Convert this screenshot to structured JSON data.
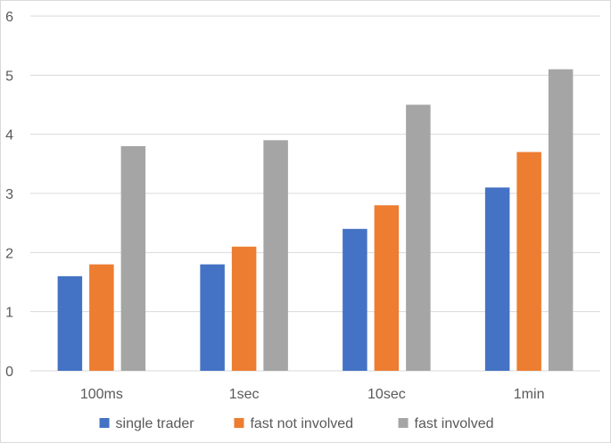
{
  "chart_data": {
    "type": "bar",
    "title": "",
    "xlabel": "",
    "ylabel": "",
    "categories": [
      "100ms",
      "1sec",
      "10sec",
      "1min"
    ],
    "series": [
      {
        "name": "single trader",
        "color": "#4472c4",
        "values": [
          1.6,
          1.8,
          2.4,
          3.1
        ]
      },
      {
        "name": "fast not involved",
        "color": "#ed7d31",
        "values": [
          1.8,
          2.1,
          2.8,
          3.7
        ]
      },
      {
        "name": "fast involved",
        "color": "#a5a5a5",
        "values": [
          3.8,
          3.9,
          4.5,
          5.1
        ]
      }
    ],
    "ylim": [
      0,
      6
    ],
    "yticks": [
      "0",
      "1",
      "2",
      "3",
      "4",
      "5",
      "6"
    ],
    "grid": true,
    "legend_position": "bottom",
    "colors": {
      "gridline": "#d9d9d9",
      "text": "#595959"
    }
  }
}
